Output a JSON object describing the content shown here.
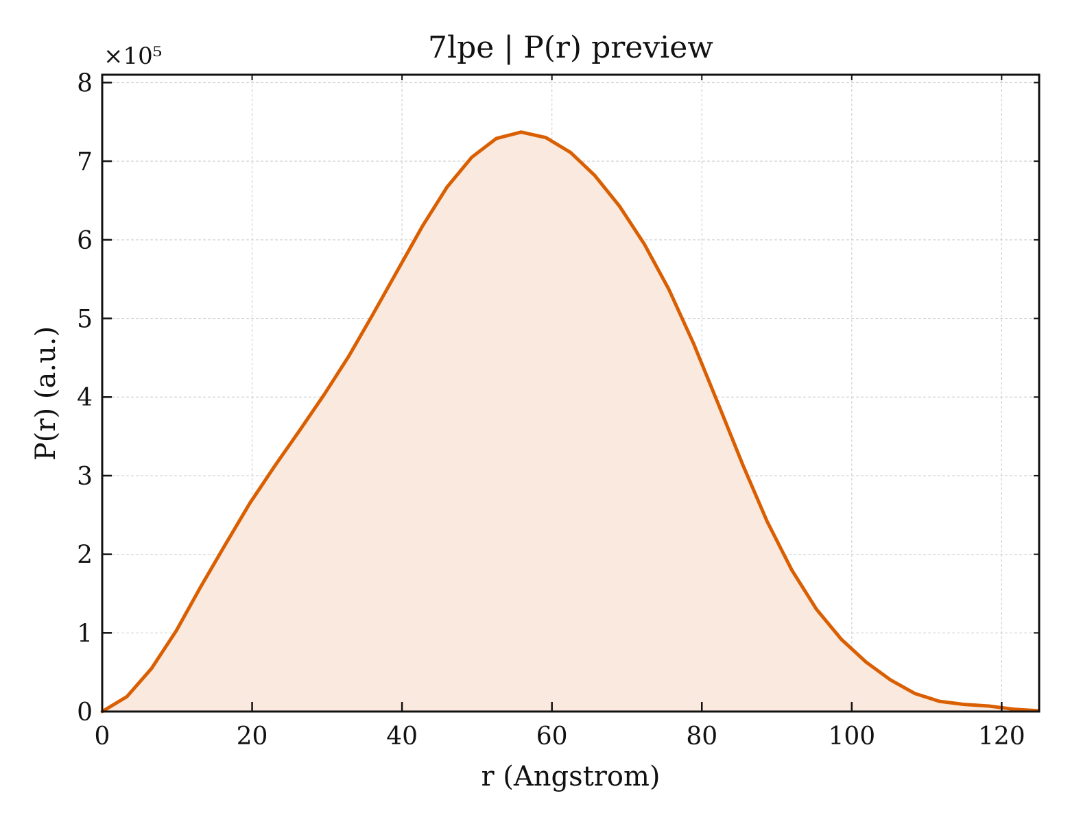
{
  "chart_data": {
    "type": "area",
    "title": "7lpe | P(r) preview",
    "xlabel": "r (Angstrom)",
    "ylabel": "P(r) (a.u.)",
    "y_scale_note": "×10⁵",
    "xlim": [
      0,
      125
    ],
    "ylim": [
      0,
      8.1
    ],
    "y_multiplier": 100000,
    "xticks": [
      0,
      20,
      40,
      60,
      80,
      100,
      120
    ],
    "yticks": [
      0,
      1,
      2,
      3,
      4,
      5,
      6,
      7,
      8
    ],
    "grid": true,
    "series": [
      {
        "color": "#d95f02",
        "fill": "#fae9de",
        "x": [
          0,
          3.3,
          6.6,
          9.9,
          13.1,
          16.4,
          19.7,
          23.0,
          26.3,
          29.6,
          32.9,
          36.1,
          39.4,
          42.7,
          46.0,
          49.3,
          52.6,
          55.9,
          59.2,
          62.5,
          65.7,
          69.0,
          72.3,
          75.6,
          78.9,
          82.2,
          85.5,
          88.7,
          92.0,
          95.3,
          98.6,
          101.9,
          105.2,
          108.4,
          111.7,
          115.0,
          118.3,
          121.6,
          124.9
        ],
        "y": [
          0.0,
          0.19,
          0.55,
          1.03,
          1.58,
          2.12,
          2.65,
          3.12,
          3.57,
          4.03,
          4.52,
          5.05,
          5.61,
          6.17,
          6.67,
          7.05,
          7.29,
          7.37,
          7.3,
          7.11,
          6.82,
          6.43,
          5.95,
          5.37,
          4.68,
          3.91,
          3.13,
          2.42,
          1.8,
          1.3,
          0.92,
          0.63,
          0.4,
          0.23,
          0.13,
          0.09,
          0.07,
          0.03,
          0.01
        ]
      }
    ]
  }
}
